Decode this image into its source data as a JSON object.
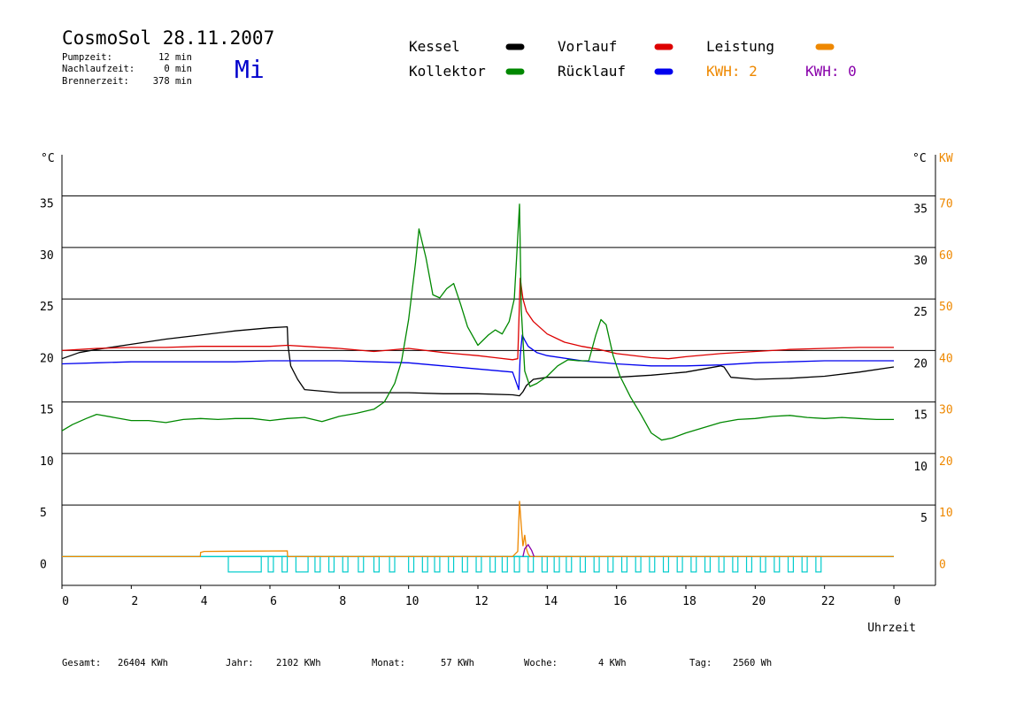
{
  "header": {
    "title": "CosmoSol 28.11.2007",
    "day": "Mi",
    "stats": [
      {
        "label": "Pumpzeit:",
        "value": "12 min"
      },
      {
        "label": "Nachlaufzeit:",
        "value": "0 min"
      },
      {
        "label": "Brennerzeit:",
        "value": "378 min"
      }
    ]
  },
  "legend": {
    "items": [
      {
        "label": "Kessel",
        "color": "#000000"
      },
      {
        "label": "Vorlauf",
        "color": "#dd0000"
      },
      {
        "label": "Leistung",
        "color": "#ee8800"
      },
      {
        "label": "Kollektor",
        "color": "#008800"
      },
      {
        "label": "Rücklauf",
        "color": "#0000ee"
      }
    ],
    "kwh_orange": "KWH: 2",
    "kwh_purple": "KWH: 0"
  },
  "footer": [
    {
      "label": "Gesamt:",
      "value": "26404 KWh"
    },
    {
      "label": "Jahr:",
      "value": "2102 KWh"
    },
    {
      "label": "Monat:",
      "value": "57 KWh"
    },
    {
      "label": "Woche:",
      "value": "4 KWh"
    },
    {
      "label": "Tag:",
      "value": "2560 Wh"
    }
  ],
  "chart_data": {
    "type": "line",
    "xlabel": "Uhrzeit",
    "ylabel": "°C",
    "ylabel_right": "°C",
    "ylabel_right2": "KW",
    "xlim": [
      0,
      24
    ],
    "ylim": [
      -2.8,
      39
    ],
    "x_ticks": [
      "0",
      "2",
      "4",
      "6",
      "8",
      "10",
      "12",
      "14",
      "16",
      "18",
      "20",
      "22",
      "0"
    ],
    "y_ticks": [
      "0",
      "5",
      "10",
      "15",
      "20",
      "25",
      "30",
      "35"
    ],
    "y_ticks_right": [
      "5",
      "10",
      "15",
      "20",
      "25",
      "30",
      "35"
    ],
    "y_ticks_kw": [
      "0",
      "10",
      "20",
      "30",
      "40",
      "50",
      "60",
      "70"
    ],
    "grid": true,
    "series": [
      {
        "name": "Kessel",
        "color": "#000000",
        "x": [
          0,
          0.5,
          1,
          2,
          3,
          4,
          5,
          6,
          6.5,
          6.52,
          6.6,
          6.8,
          7,
          8,
          9,
          10,
          11,
          12,
          13,
          13.2,
          13.3,
          13.4,
          13.6,
          14,
          15,
          16,
          17,
          18,
          19,
          19.1,
          19.3,
          20,
          21,
          22,
          23,
          24
        ],
        "y": [
          19.2,
          19.8,
          20.1,
          20.6,
          21.1,
          21.5,
          21.9,
          22.2,
          22.3,
          20.5,
          18.5,
          17.2,
          16.2,
          15.9,
          15.9,
          15.9,
          15.8,
          15.8,
          15.7,
          15.6,
          16.0,
          16.6,
          17.2,
          17.4,
          17.4,
          17.4,
          17.6,
          17.9,
          18.5,
          18.4,
          17.4,
          17.2,
          17.3,
          17.5,
          17.9,
          18.4
        ]
      },
      {
        "name": "Vorlauf",
        "color": "#dd0000",
        "x": [
          0,
          1,
          2,
          3,
          4,
          5,
          6,
          6.5,
          7,
          8,
          9,
          10,
          10.5,
          11,
          12,
          12.5,
          13,
          13.15,
          13.22,
          13.3,
          13.4,
          13.6,
          14,
          14.5,
          15,
          15.5,
          16,
          17,
          17.5,
          18,
          19,
          20,
          21,
          22,
          23,
          24
        ],
        "y": [
          20.0,
          20.2,
          20.3,
          20.3,
          20.4,
          20.4,
          20.4,
          20.5,
          20.4,
          20.2,
          19.9,
          20.2,
          20.0,
          19.8,
          19.5,
          19.3,
          19.1,
          19.2,
          27.0,
          25.0,
          23.8,
          22.8,
          21.6,
          20.8,
          20.4,
          20.1,
          19.7,
          19.3,
          19.2,
          19.4,
          19.7,
          19.9,
          20.1,
          20.2,
          20.3,
          20.3
        ]
      },
      {
        "name": "Rücklauf",
        "color": "#0000ee",
        "x": [
          0,
          1,
          2,
          3,
          4,
          5,
          6,
          7,
          8,
          9,
          10,
          11,
          12,
          13,
          13.18,
          13.22,
          13.28,
          13.35,
          13.45,
          13.7,
          14,
          15,
          16,
          17,
          18,
          19,
          20,
          21,
          22,
          23,
          24
        ],
        "y": [
          18.7,
          18.8,
          18.9,
          18.9,
          18.9,
          18.9,
          19.0,
          19.0,
          19.0,
          18.9,
          18.8,
          18.5,
          18.2,
          17.9,
          16.2,
          19.5,
          21.5,
          21.0,
          20.4,
          19.8,
          19.5,
          19.0,
          18.7,
          18.5,
          18.5,
          18.6,
          18.8,
          18.9,
          19.0,
          19.0,
          19.0
        ]
      },
      {
        "name": "Kollektor",
        "color": "#008800",
        "x": [
          0,
          0.3,
          0.7,
          1,
          1.5,
          2,
          2.5,
          3,
          3.5,
          4,
          4.5,
          5,
          5.5,
          6,
          6.5,
          7,
          7.5,
          8,
          8.5,
          9,
          9.3,
          9.6,
          9.8,
          10,
          10.2,
          10.3,
          10.5,
          10.7,
          10.9,
          11.1,
          11.3,
          11.5,
          11.7,
          12,
          12.3,
          12.5,
          12.7,
          12.9,
          13.05,
          13.15,
          13.2,
          13.25,
          13.35,
          13.5,
          13.7,
          14,
          14.3,
          14.6,
          14.9,
          15.2,
          15.4,
          15.55,
          15.7,
          15.9,
          16.1,
          16.4,
          16.7,
          17,
          17.3,
          17.6,
          18,
          18.5,
          19,
          19.5,
          20,
          20.5,
          21,
          21.5,
          22,
          22.5,
          23,
          23.5,
          24
        ],
        "y": [
          12.2,
          12.8,
          13.4,
          13.8,
          13.5,
          13.2,
          13.2,
          13.0,
          13.3,
          13.4,
          13.3,
          13.4,
          13.4,
          13.2,
          13.4,
          13.5,
          13.1,
          13.6,
          13.9,
          14.3,
          15.0,
          16.8,
          19.0,
          23.0,
          28.5,
          31.8,
          29.0,
          25.4,
          25.1,
          26.0,
          26.5,
          24.5,
          22.3,
          20.5,
          21.5,
          22.0,
          21.6,
          22.8,
          25.0,
          31.0,
          34.2,
          24.0,
          18.0,
          16.5,
          16.8,
          17.5,
          18.5,
          19.1,
          19.0,
          19.0,
          21.5,
          23.0,
          22.5,
          19.5,
          17.5,
          15.5,
          13.8,
          12.0,
          11.3,
          11.5,
          12.0,
          12.5,
          13.0,
          13.3,
          13.4,
          13.6,
          13.7,
          13.5,
          13.4,
          13.5,
          13.4,
          13.3,
          13.3
        ]
      }
    ],
    "baseline": {
      "color": "#00cccc",
      "y": 0
    },
    "leistung": {
      "name": "Leistung",
      "color": "#ee8800",
      "x": [
        0,
        3.99,
        4.0,
        4.1,
        6.5,
        6.51,
        13.0,
        13.15,
        13.2,
        13.25,
        13.3,
        13.35,
        13.4,
        13.45,
        13.5,
        24
      ],
      "kw": [
        0,
        0,
        0.8,
        1.0,
        1.1,
        0,
        0,
        1.0,
        10.8,
        6.0,
        2.0,
        4.2,
        1.5,
        0.5,
        0,
        0
      ]
    },
    "leistung2": {
      "color": "#8800aa",
      "x": [
        13.3,
        13.35,
        13.45,
        13.55,
        13.6,
        13.62
      ],
      "kw": [
        0,
        1.5,
        2.3,
        1.2,
        0.3,
        0
      ]
    },
    "pump_intervals": [
      [
        4.8,
        5.75
      ],
      [
        5.95,
        6.1
      ],
      [
        6.35,
        6.5
      ],
      [
        6.75,
        7.1
      ],
      [
        7.3,
        7.45
      ],
      [
        7.7,
        7.85
      ],
      [
        8.1,
        8.25
      ],
      [
        8.55,
        8.7
      ],
      [
        9.0,
        9.15
      ],
      [
        9.45,
        9.6
      ],
      [
        10.0,
        10.15
      ],
      [
        10.4,
        10.55
      ],
      [
        10.75,
        10.9
      ],
      [
        11.15,
        11.3
      ],
      [
        11.55,
        11.7
      ],
      [
        11.95,
        12.1
      ],
      [
        12.35,
        12.5
      ],
      [
        12.7,
        12.85
      ],
      [
        13.05,
        13.2
      ],
      [
        13.45,
        13.6
      ],
      [
        13.85,
        14.0
      ],
      [
        14.2,
        14.35
      ],
      [
        14.55,
        14.7
      ],
      [
        14.95,
        15.1
      ],
      [
        15.35,
        15.5
      ],
      [
        15.75,
        15.9
      ],
      [
        16.15,
        16.3
      ],
      [
        16.55,
        16.7
      ],
      [
        16.95,
        17.1
      ],
      [
        17.35,
        17.5
      ],
      [
        17.75,
        17.9
      ],
      [
        18.15,
        18.3
      ],
      [
        18.55,
        18.7
      ],
      [
        18.95,
        19.1
      ],
      [
        19.35,
        19.5
      ],
      [
        19.75,
        19.9
      ],
      [
        20.15,
        20.3
      ],
      [
        20.55,
        20.7
      ],
      [
        20.95,
        21.1
      ],
      [
        21.35,
        21.5
      ],
      [
        21.75,
        21.9
      ]
    ]
  }
}
